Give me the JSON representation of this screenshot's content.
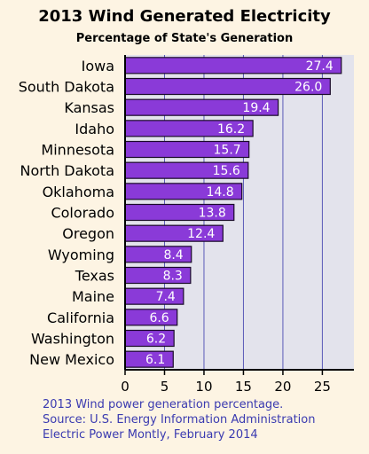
{
  "chart_data": {
    "type": "bar",
    "orientation": "horizontal",
    "title": "2013 Wind Generated Electricity",
    "subtitle": "Percentage of State's Generation",
    "categories": [
      "Iowa",
      "South Dakota",
      "Kansas",
      "Idaho",
      "Minnesota",
      "North Dakota",
      "Oklahoma",
      "Colorado",
      "Oregon",
      "Wyoming",
      "Texas",
      "Maine",
      "California",
      "Washington",
      "New Mexico"
    ],
    "values": [
      27.4,
      26.0,
      19.4,
      16.2,
      15.7,
      15.6,
      14.8,
      13.8,
      12.4,
      8.4,
      8.3,
      7.4,
      6.6,
      6.2,
      6.1
    ],
    "value_labels": [
      "27.4",
      "26.0",
      "19.4",
      "16.2",
      "15.7",
      "15.6",
      "14.8",
      "13.8",
      "12.4",
      "8.4",
      "8.3",
      "7.4",
      "6.6",
      "6.2",
      "6.1"
    ],
    "xlim": [
      0,
      29
    ],
    "xticks": [
      "0",
      "5",
      "10",
      "15",
      "20",
      "25"
    ],
    "xtick_values": [
      0,
      5,
      10,
      15,
      20,
      25
    ],
    "grid": "vertical",
    "colors": {
      "bar": "#8a3ad8",
      "bar_edge": "#1a0a2a",
      "plot_bg": "#e3e3ec",
      "grid": "#5a5ab8",
      "page_bg": "#fdf4e3"
    }
  },
  "caption": {
    "line1": "2013 Wind power generation percentage.",
    "line2": "Source: U.S. Energy Information Administration",
    "line3": "Electric Power Montly, February 2014"
  }
}
